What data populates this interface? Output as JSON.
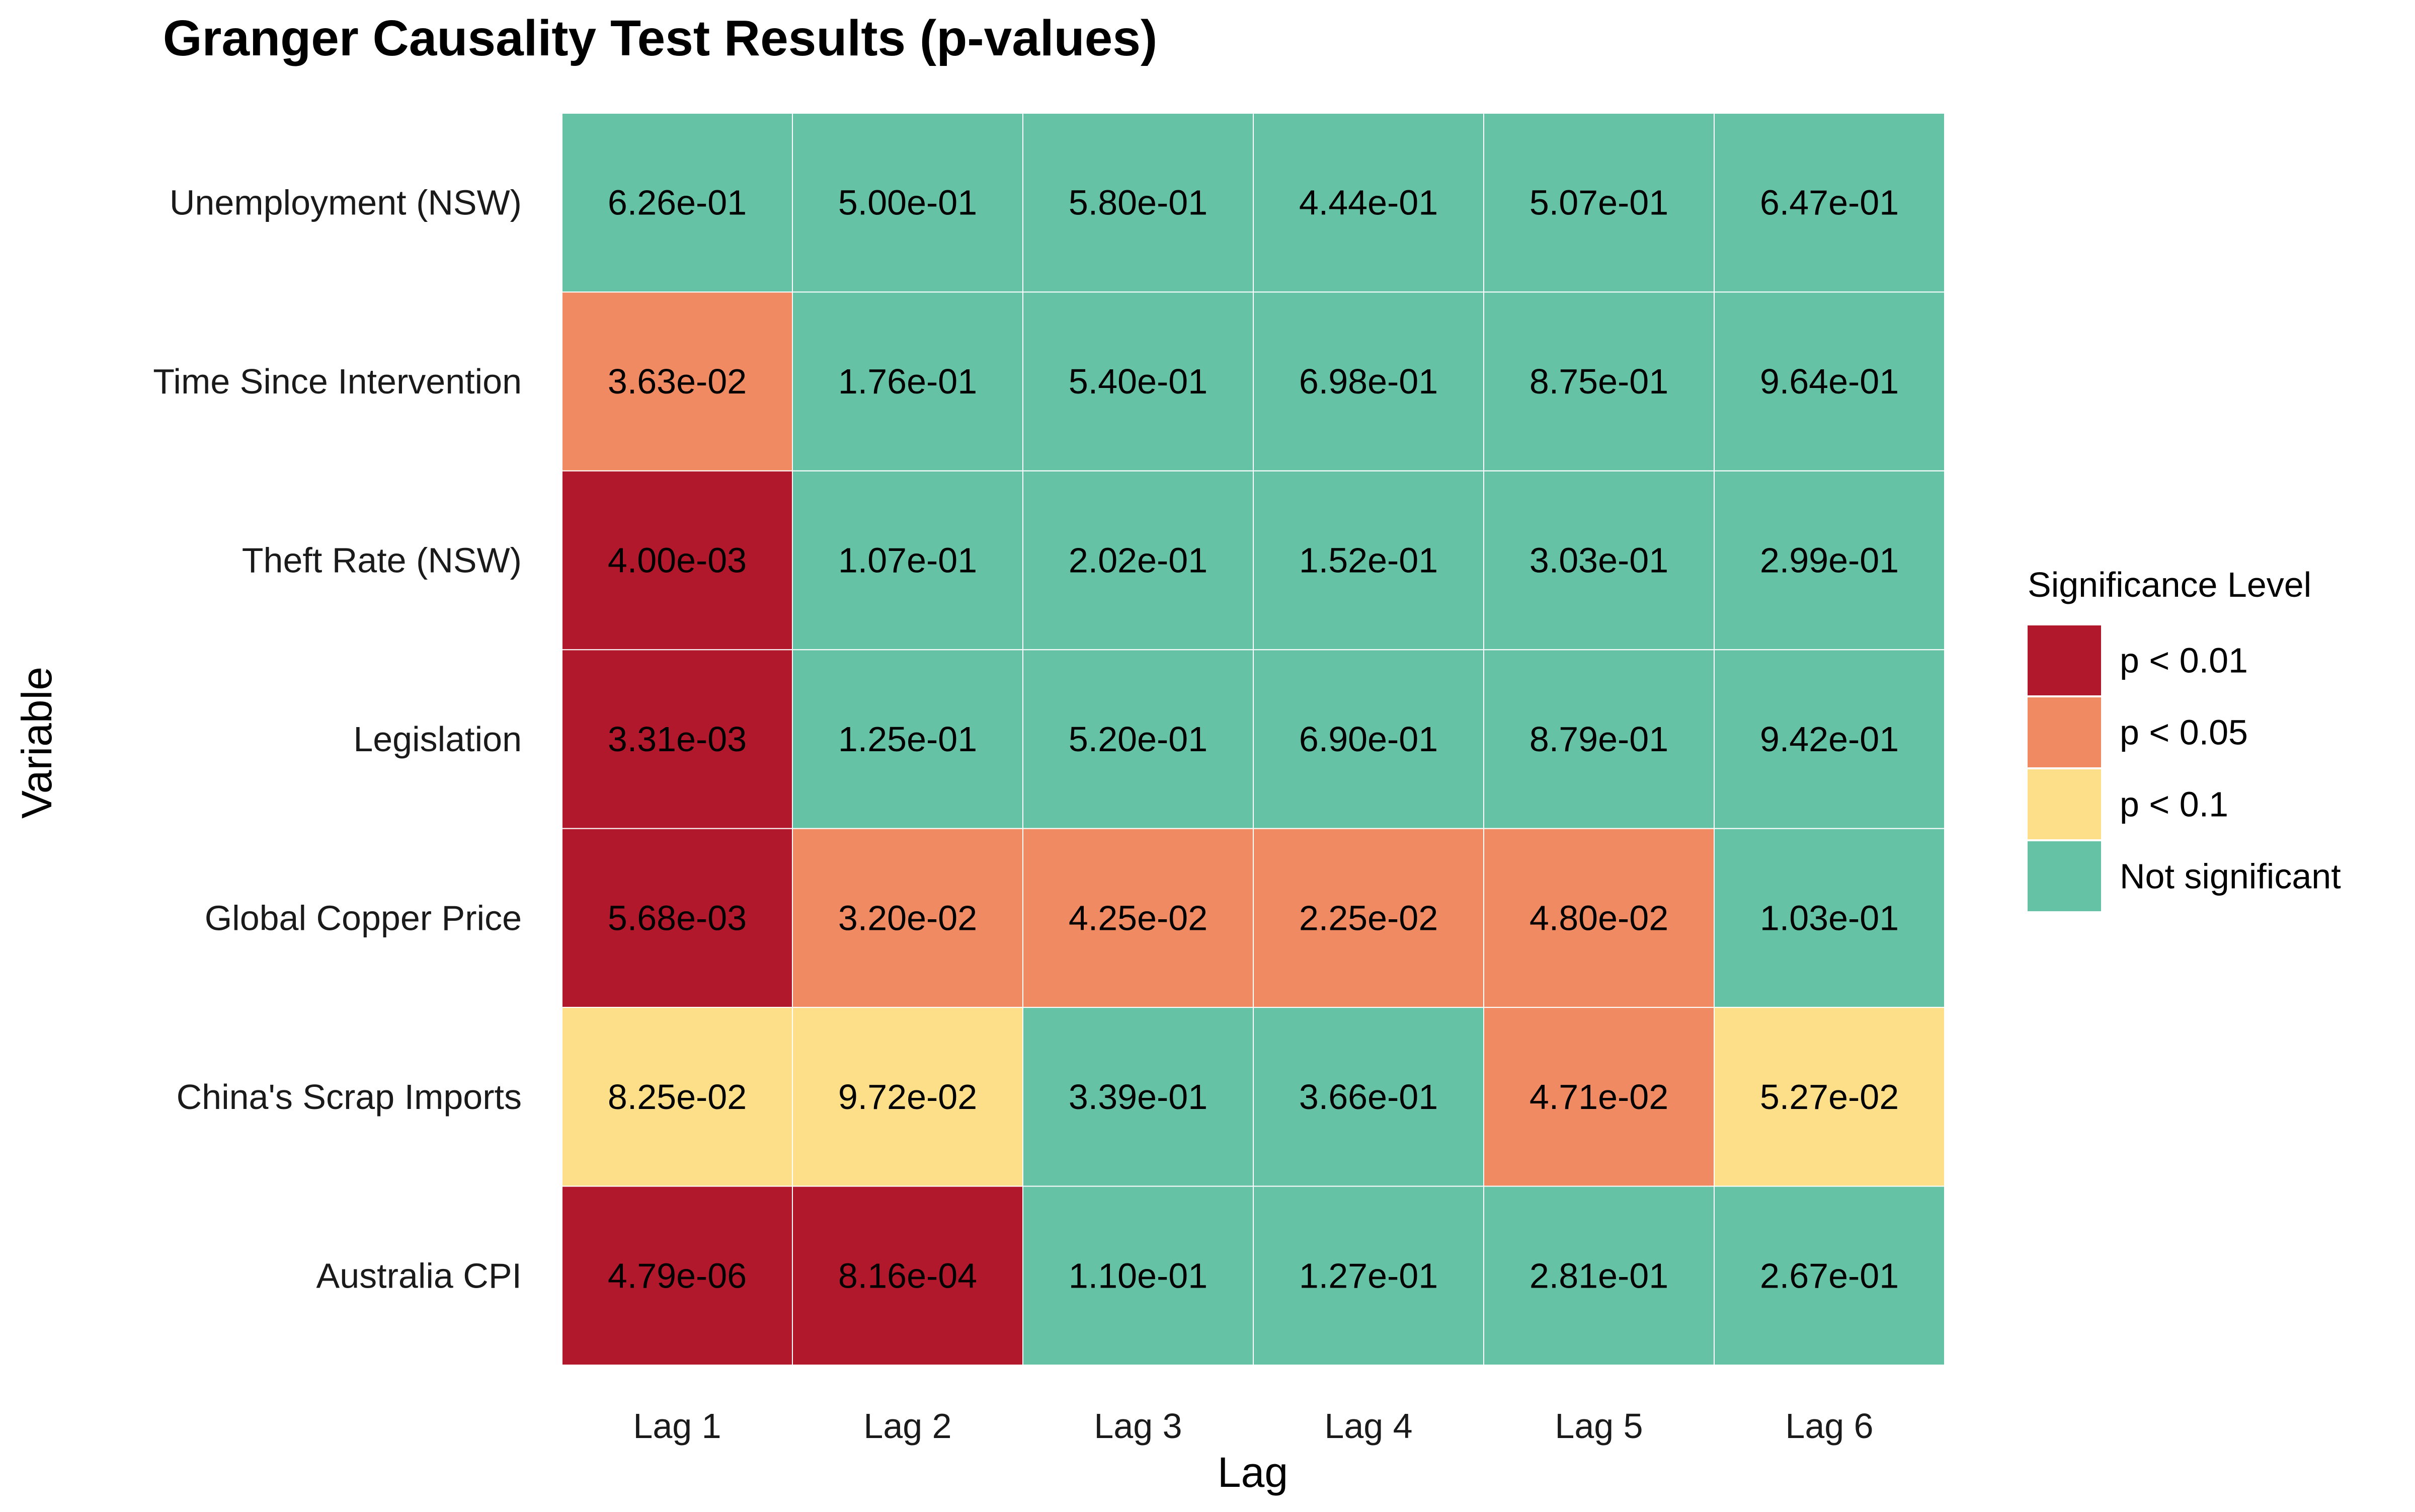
{
  "chart_data": {
    "type": "heatmap",
    "title": "Granger Causality Test Results (p-values)",
    "xlabel": "Lag",
    "ylabel": "Variable",
    "x_categories": [
      "Lag 1",
      "Lag 2",
      "Lag 3",
      "Lag 4",
      "Lag 5",
      "Lag 6"
    ],
    "y_categories": [
      "Unemployment (NSW)",
      "Time Since Intervention",
      "Theft Rate (NSW)",
      "Legislation",
      "Global Copper Price",
      "China's Scrap Imports",
      "Australia CPI"
    ],
    "values": [
      [
        0.626,
        0.5,
        0.58,
        0.444,
        0.507,
        0.647
      ],
      [
        0.0363,
        0.176,
        0.54,
        0.698,
        0.875,
        0.964
      ],
      [
        0.004,
        0.107,
        0.202,
        0.152,
        0.303,
        0.299
      ],
      [
        0.00331,
        0.125,
        0.52,
        0.69,
        0.879,
        0.942
      ],
      [
        0.00568,
        0.032,
        0.0425,
        0.0225,
        0.048,
        0.103
      ],
      [
        0.0825,
        0.0972,
        0.339,
        0.366,
        0.0471,
        0.0527
      ],
      [
        4.79e-06,
        0.000816,
        0.11,
        0.127,
        0.281,
        0.267
      ]
    ],
    "cell_labels": [
      [
        "6.26e-01",
        "5.00e-01",
        "5.80e-01",
        "4.44e-01",
        "5.07e-01",
        "6.47e-01"
      ],
      [
        "3.63e-02",
        "1.76e-01",
        "5.40e-01",
        "6.98e-01",
        "8.75e-01",
        "9.64e-01"
      ],
      [
        "4.00e-03",
        "1.07e-01",
        "2.02e-01",
        "1.52e-01",
        "3.03e-01",
        "2.99e-01"
      ],
      [
        "3.31e-03",
        "1.25e-01",
        "5.20e-01",
        "6.90e-01",
        "8.79e-01",
        "9.42e-01"
      ],
      [
        "5.68e-03",
        "3.20e-02",
        "4.25e-02",
        "2.25e-02",
        "4.80e-02",
        "1.03e-01"
      ],
      [
        "8.25e-02",
        "9.72e-02",
        "3.39e-01",
        "3.66e-01",
        "4.71e-02",
        "5.27e-02"
      ],
      [
        "4.79e-06",
        "8.16e-04",
        "1.10e-01",
        "1.27e-01",
        "2.81e-01",
        "2.67e-01"
      ]
    ],
    "legend": {
      "title": "Significance Level",
      "placement": "right",
      "items": [
        {
          "label": "p < 0.01",
          "threshold": 0.01,
          "color": "#b2182b"
        },
        {
          "label": "p < 0.05",
          "threshold": 0.05,
          "color": "#ef8a62"
        },
        {
          "label": "p < 0.1",
          "threshold": 0.1,
          "color": "#fddf8a"
        },
        {
          "label": "Not significant",
          "threshold": null,
          "color": "#66c2a5"
        }
      ]
    },
    "grid": true
  }
}
